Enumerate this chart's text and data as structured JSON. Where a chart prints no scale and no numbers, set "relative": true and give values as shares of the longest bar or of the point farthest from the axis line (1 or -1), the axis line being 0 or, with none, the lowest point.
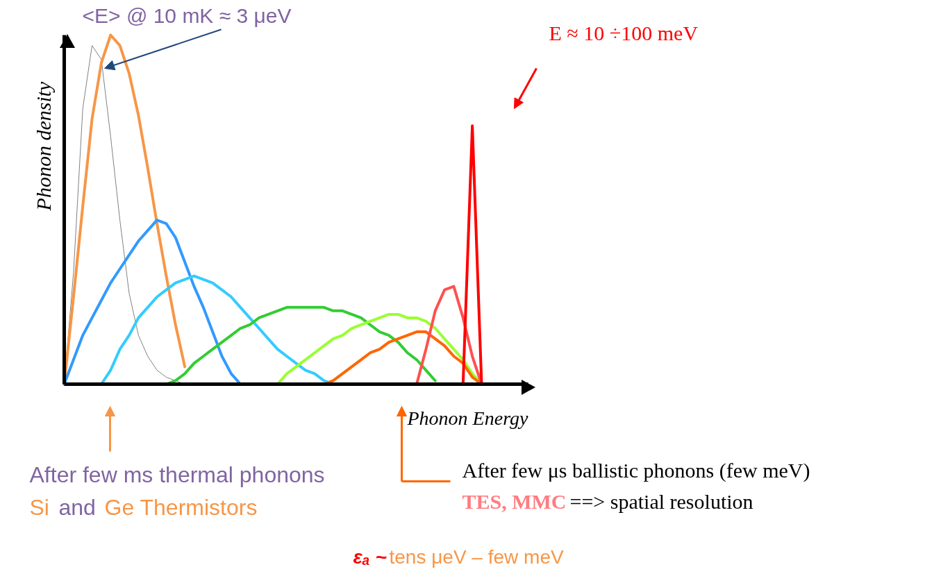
{
  "chart_data": {
    "type": "line",
    "relative": true,
    "xlabel": "Phonon Energy",
    "ylabel": "Phonon density",
    "categories": [
      null,
      null,
      null,
      null,
      null,
      null,
      null,
      null,
      null,
      null,
      null,
      null,
      null,
      null,
      null,
      null,
      null,
      null,
      null,
      null,
      null,
      null,
      null,
      null,
      null,
      null,
      null,
      null,
      null,
      null,
      null,
      null,
      null,
      null,
      null,
      null,
      null,
      null,
      null,
      null,
      null,
      null,
      null,
      null,
      null,
      null
    ],
    "series": [
      {
        "color": "#808080",
        "values": [
          0,
          0.32,
          0.79,
          0.97,
          0.93,
          0.71,
          0.47,
          0.26,
          0.14,
          0.08,
          0.04,
          0.02,
          0.01,
          0,
          null,
          null,
          null,
          null,
          null,
          null,
          null,
          null,
          null,
          null,
          null,
          null,
          null,
          null,
          null,
          null,
          null,
          null,
          null,
          null,
          null,
          null,
          null,
          null,
          null,
          null,
          null,
          null,
          null,
          null,
          null,
          null
        ]
      },
      {
        "color": "#f79646",
        "values": [
          0,
          0.25,
          0.51,
          0.76,
          0.92,
          1.0,
          0.97,
          0.89,
          0.77,
          0.62,
          0.46,
          0.31,
          0.17,
          0.05,
          null,
          null,
          null,
          null,
          null,
          null,
          null,
          null,
          null,
          null,
          null,
          null,
          null,
          null,
          null,
          null,
          null,
          null,
          null,
          null,
          null,
          null,
          null,
          null,
          null,
          null,
          null,
          null,
          null,
          null,
          null,
          null
        ]
      },
      {
        "color": "#3399ff",
        "values": [
          0,
          0.07,
          0.14,
          0.19,
          0.24,
          0.29,
          0.33,
          0.37,
          0.41,
          0.44,
          0.47,
          0.46,
          0.42,
          0.35,
          0.28,
          0.22,
          0.15,
          0.08,
          0.03,
          0,
          null,
          null,
          null,
          null,
          null,
          null,
          null,
          null,
          null,
          null,
          null,
          null,
          null,
          null,
          null,
          null,
          null,
          null,
          null,
          null,
          null,
          null,
          null,
          null,
          null,
          null
        ]
      },
      {
        "color": "#33ccff",
        "values": [
          null,
          null,
          null,
          null,
          0,
          0.04,
          0.1,
          0.14,
          0.19,
          0.22,
          0.25,
          0.27,
          0.29,
          0.3,
          0.31,
          0.3,
          0.29,
          0.27,
          0.25,
          0.22,
          0.19,
          0.16,
          0.13,
          0.1,
          0.08,
          0.06,
          0.04,
          0.03,
          0.01,
          0,
          null,
          null,
          null,
          null,
          null,
          null,
          null,
          null,
          null,
          null,
          null,
          null,
          null,
          null,
          null,
          null
        ]
      },
      {
        "color": "#33cc33",
        "values": [
          null,
          null,
          null,
          null,
          null,
          null,
          null,
          null,
          null,
          null,
          null,
          0,
          0.01,
          0.03,
          0.06,
          0.08,
          0.1,
          0.12,
          0.14,
          0.16,
          0.17,
          0.19,
          0.2,
          0.21,
          0.22,
          0.22,
          0.22,
          0.22,
          0.22,
          0.21,
          0.21,
          0.2,
          0.19,
          0.17,
          0.15,
          0.14,
          0.12,
          0.09,
          0.07,
          0.04,
          0.01,
          null,
          null,
          null,
          null,
          null
        ]
      },
      {
        "color": "#99ff33",
        "values": [
          null,
          null,
          null,
          null,
          null,
          null,
          null,
          null,
          null,
          null,
          null,
          null,
          null,
          null,
          null,
          null,
          null,
          null,
          null,
          null,
          null,
          null,
          null,
          0,
          0.03,
          0.05,
          0.07,
          0.09,
          0.11,
          0.13,
          0.14,
          0.16,
          0.17,
          0.18,
          0.19,
          0.2,
          0.2,
          0.19,
          0.19,
          0.18,
          0.16,
          0.13,
          0.1,
          0.07,
          0.03,
          0
        ]
      },
      {
        "color": "#ff6600",
        "values": [
          null,
          null,
          null,
          null,
          null,
          null,
          null,
          null,
          null,
          null,
          null,
          null,
          null,
          null,
          null,
          null,
          null,
          null,
          null,
          null,
          null,
          null,
          null,
          null,
          null,
          null,
          null,
          null,
          0,
          0.01,
          0.03,
          0.05,
          0.07,
          0.09,
          0.1,
          0.12,
          0.13,
          0.14,
          0.15,
          0.15,
          0.13,
          0.11,
          0.08,
          0.06,
          0.02,
          0
        ]
      },
      {
        "color": "#ff5050",
        "values": [
          null,
          null,
          null,
          null,
          null,
          null,
          null,
          null,
          null,
          null,
          null,
          null,
          null,
          null,
          null,
          null,
          null,
          null,
          null,
          null,
          null,
          null,
          null,
          null,
          null,
          null,
          null,
          null,
          null,
          null,
          null,
          null,
          null,
          null,
          null,
          null,
          null,
          null,
          0,
          0.1,
          0.21,
          0.27,
          0.28,
          0.19,
          0.08,
          0
        ]
      },
      {
        "color": "#ff0000",
        "values": [
          null,
          null,
          null,
          null,
          null,
          null,
          null,
          null,
          null,
          null,
          null,
          null,
          null,
          null,
          null,
          null,
          null,
          null,
          null,
          null,
          null,
          null,
          null,
          null,
          null,
          null,
          null,
          null,
          null,
          null,
          null,
          null,
          null,
          null,
          null,
          null,
          null,
          null,
          null,
          null,
          null,
          null,
          null,
          0,
          0.74,
          0
        ]
      }
    ],
    "annotations": [
      "<E> @ 10 mK ≈ 3 μeV",
      "E ≈ 10 ÷100 meV",
      "After few ms thermal phonons",
      "Si",
      "and",
      "Ge Thermistors",
      "After few μs ballistic phonons (few meV)",
      "TES, MMC",
      "==> spatial resolution",
      "εₐ ~",
      "tens μeV – few meV"
    ]
  }
}
